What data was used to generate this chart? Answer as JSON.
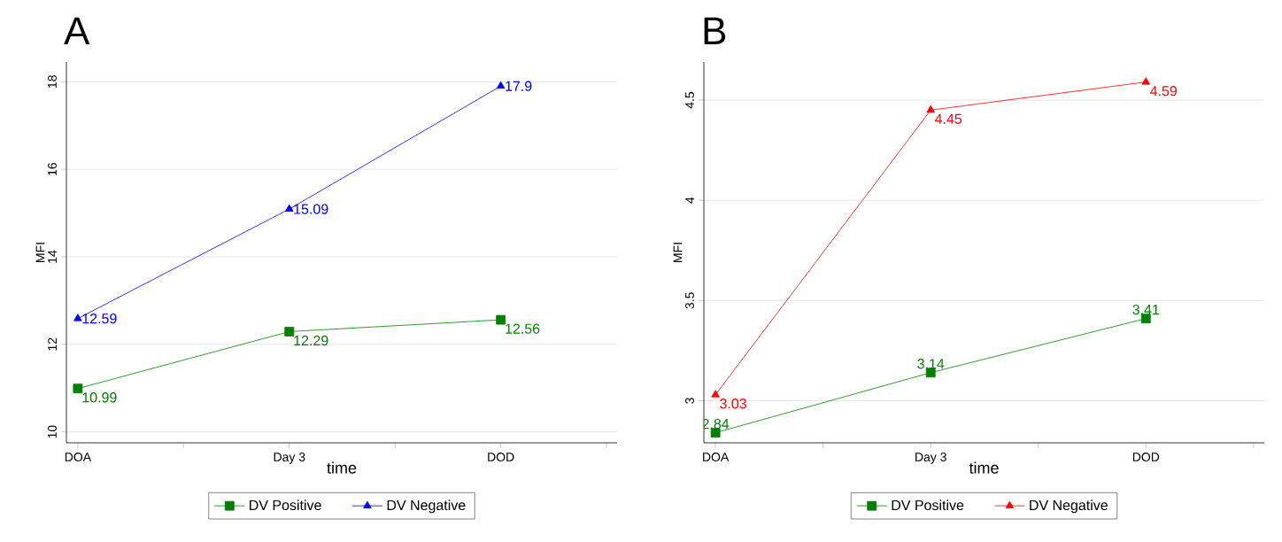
{
  "chart_data": [
    {
      "type": "line",
      "title": "A",
      "xlabel": "time",
      "ylabel": "MFI",
      "categories": [
        "DOA",
        "Day 3",
        "DOD"
      ],
      "ylim": [
        9.75,
        18.45
      ],
      "yticks": [
        10,
        12,
        14,
        16,
        18
      ],
      "grid": "y",
      "legend": "bottom",
      "data_labels": true,
      "series": [
        {
          "name": "DV Positive",
          "color": "#008000",
          "marker": "square",
          "values": [
            10.99,
            12.29,
            12.56
          ]
        },
        {
          "name": "DV Negative",
          "color": "#0000ff",
          "marker": "triangle",
          "values": [
            12.59,
            15.09,
            17.9
          ]
        }
      ]
    },
    {
      "type": "line",
      "title": "B",
      "xlabel": "time",
      "ylabel": "MFI",
      "categories": [
        "DOA",
        "Day 3",
        "DOD"
      ],
      "ylim": [
        2.79,
        4.69
      ],
      "yticks": [
        3,
        3.5,
        4,
        4.5
      ],
      "grid": "y",
      "legend": "bottom",
      "data_labels": true,
      "series": [
        {
          "name": "DV Positive",
          "color": "#008000",
          "marker": "square",
          "values": [
            2.84,
            3.14,
            3.41
          ]
        },
        {
          "name": "DV Negative",
          "color": "#ff0000",
          "marker": "triangle",
          "values": [
            3.03,
            4.45,
            4.59
          ]
        }
      ]
    }
  ]
}
